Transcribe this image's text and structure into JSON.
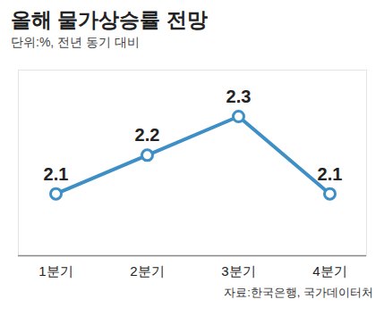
{
  "chart_data": {
    "type": "line",
    "title": "올해 물가상승률 전망",
    "subtitle": "단위:%, 전년 동기 대비",
    "caption": "자료:한국은행, 국가데이터처",
    "categories": [
      "1분기",
      "2분기",
      "3분기",
      "4분기"
    ],
    "values": [
      2.1,
      2.2,
      2.3,
      2.1
    ],
    "color": "#3d8fc6",
    "marker": "circle",
    "data_labels": true,
    "ylim": [
      1.94,
      2.42
    ],
    "yticks": [],
    "tick_labels": "x",
    "grid": false
  }
}
